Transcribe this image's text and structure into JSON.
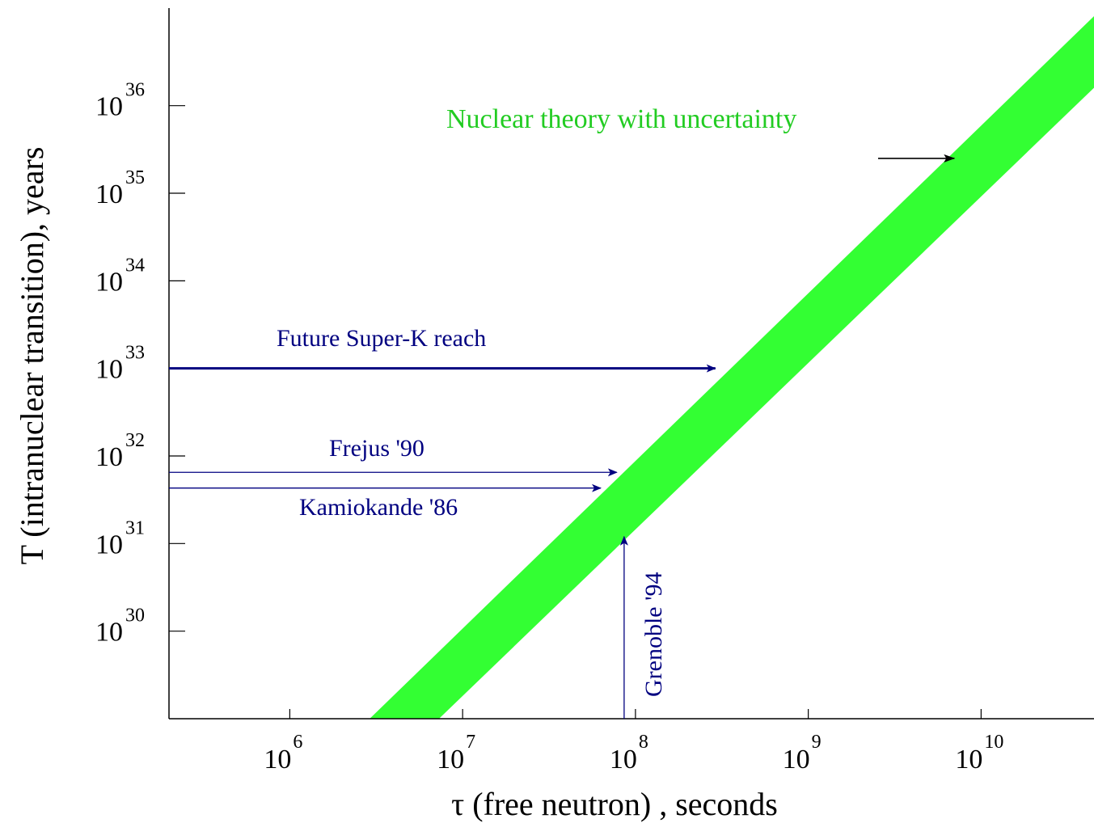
{
  "chart_data": {
    "type": "area",
    "xlabel": "τ (free neutron) , seconds",
    "ylabel": "T (intranuclear transition), years",
    "x_scale": "log",
    "y_scale": "log",
    "xlim": [
      200000.0,
      45000000000.0
    ],
    "ylim": [
      1e+29,
      1.3e+37
    ],
    "x_ticks": [
      {
        "value": 1000000.0,
        "base": "10",
        "exp": "6"
      },
      {
        "value": 10000000.0,
        "base": "10",
        "exp": "7"
      },
      {
        "value": 100000000.0,
        "base": "10",
        "exp": "8"
      },
      {
        "value": 1000000000.0,
        "base": "10",
        "exp": "9"
      },
      {
        "value": 10000000000.0,
        "base": "10",
        "exp": "10"
      }
    ],
    "y_ticks": [
      {
        "value": 1e+30,
        "base": "10",
        "exp": "30"
      },
      {
        "value": 1e+31,
        "base": "10",
        "exp": "31"
      },
      {
        "value": 1e+32,
        "base": "10",
        "exp": "32"
      },
      {
        "value": 1e+33,
        "base": "10",
        "exp": "33"
      },
      {
        "value": 1e+34,
        "base": "10",
        "exp": "34"
      },
      {
        "value": 1e+35,
        "base": "10",
        "exp": "35"
      },
      {
        "value": 1e+36,
        "base": "10",
        "exp": "36"
      }
    ],
    "grid": false,
    "band": {
      "name": "Nuclear theory with uncertainty",
      "color": "#33ff33",
      "lower": [
        [
          2900000.0,
          1e+29
        ],
        [
          45000000000.0,
          1.05e+37
        ]
      ],
      "upper": [
        [
          7300000.0,
          1e+29
        ],
        [
          45000000000.0,
          1.6e+36
        ]
      ]
    },
    "limits": [
      {
        "name": "Future Super-K reach",
        "direction": "horizontal",
        "from": [
          200000.0,
          1e+33
        ],
        "to": [
          290000000.0,
          1e+33
        ],
        "color": "#000080",
        "weight": "thick"
      },
      {
        "name": "Frejus '90",
        "direction": "horizontal",
        "from": [
          200000.0,
          6.5e+31
        ],
        "to": [
          78000000.0,
          6.5e+31
        ],
        "color": "#000080",
        "weight": "thin"
      },
      {
        "name": "Kamiokande '86",
        "direction": "horizontal",
        "from": [
          200000.0,
          4.3e+31
        ],
        "to": [
          63000000.0,
          4.3e+31
        ],
        "color": "#000080",
        "weight": "thin"
      },
      {
        "name": "Grenoble '94",
        "direction": "vertical",
        "from": [
          86000000.0,
          1e+29
        ],
        "to": [
          86000000.0,
          1.2e+31
        ],
        "color": "#000080",
        "weight": "thin"
      }
    ],
    "annotations": [
      {
        "text": "Nuclear theory with uncertainty",
        "color": "#22cc22",
        "arrow_to": [
          7000000000.0,
          2.5e+35
        ]
      }
    ]
  }
}
